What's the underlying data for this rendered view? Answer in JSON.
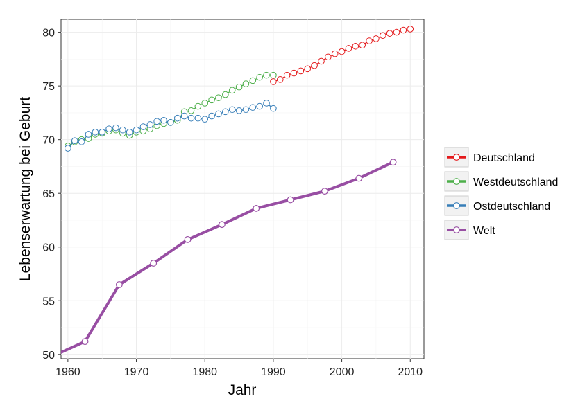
{
  "chart_data": {
    "type": "line",
    "title": "",
    "xlabel": "Jahr",
    "ylabel": "Lebenserwartung bei Geburt",
    "xlim": [
      1959,
      2012
    ],
    "ylim": [
      49.6,
      81.2
    ],
    "x_ticks": [
      1960,
      1970,
      1980,
      1990,
      2000,
      2010
    ],
    "y_ticks": [
      50,
      55,
      60,
      65,
      70,
      75,
      80
    ],
    "grid": true,
    "legend_position": "right",
    "series": [
      {
        "name": "Deutschland",
        "color": "#e41a1c",
        "marker": "circle",
        "line": "thin",
        "x": [
          1990,
          1991,
          1992,
          1993,
          1994,
          1995,
          1996,
          1997,
          1998,
          1999,
          2000,
          2001,
          2002,
          2003,
          2004,
          2005,
          2006,
          2007,
          2008,
          2009,
          2010
        ],
        "y": [
          75.4,
          75.6,
          76.0,
          76.2,
          76.4,
          76.6,
          76.9,
          77.3,
          77.7,
          78.0,
          78.2,
          78.5,
          78.7,
          78.8,
          79.2,
          79.4,
          79.7,
          79.9,
          80.0,
          80.2,
          80.3
        ]
      },
      {
        "name": "Westdeutschland",
        "color": "#4daf4a",
        "marker": "circle",
        "line": "thin",
        "x": [
          1960,
          1961,
          1962,
          1963,
          1964,
          1965,
          1966,
          1967,
          1968,
          1969,
          1970,
          1971,
          1972,
          1973,
          1974,
          1975,
          1976,
          1977,
          1978,
          1979,
          1980,
          1981,
          1982,
          1983,
          1984,
          1985,
          1986,
          1987,
          1988,
          1989,
          1990
        ],
        "y": [
          69.4,
          69.8,
          70.0,
          70.1,
          70.5,
          70.6,
          70.8,
          70.9,
          70.6,
          70.4,
          70.7,
          70.8,
          71.0,
          71.3,
          71.5,
          71.6,
          71.8,
          72.6,
          72.7,
          73.1,
          73.4,
          73.7,
          73.9,
          74.2,
          74.6,
          74.9,
          75.2,
          75.5,
          75.8,
          76.0,
          76.0
        ]
      },
      {
        "name": "Ostdeutschland",
        "color": "#377eb8",
        "marker": "circle",
        "line": "thin",
        "x": [
          1960,
          1961,
          1962,
          1963,
          1964,
          1965,
          1966,
          1967,
          1968,
          1969,
          1970,
          1971,
          1972,
          1973,
          1974,
          1975,
          1976,
          1977,
          1978,
          1979,
          1980,
          1981,
          1982,
          1983,
          1984,
          1985,
          1986,
          1987,
          1988,
          1989,
          1990
        ],
        "y": [
          69.2,
          69.9,
          69.8,
          70.5,
          70.7,
          70.7,
          71.0,
          71.1,
          70.9,
          70.7,
          70.9,
          71.2,
          71.4,
          71.7,
          71.8,
          71.6,
          72.0,
          72.2,
          72.0,
          72.0,
          71.9,
          72.2,
          72.4,
          72.6,
          72.8,
          72.7,
          72.8,
          73.0,
          73.1,
          73.4,
          72.9
        ]
      },
      {
        "name": "Welt",
        "color": "#984ea3",
        "marker": "circle",
        "line": "thick",
        "x": [
          1958,
          1962.5,
          1967.5,
          1972.5,
          1977.5,
          1982.5,
          1987.5,
          1992.5,
          1997.5,
          2002.5,
          2007.5
        ],
        "y": [
          49.9,
          51.2,
          56.5,
          58.5,
          60.7,
          62.1,
          63.6,
          64.4,
          65.2,
          66.4,
          67.9
        ]
      }
    ]
  }
}
